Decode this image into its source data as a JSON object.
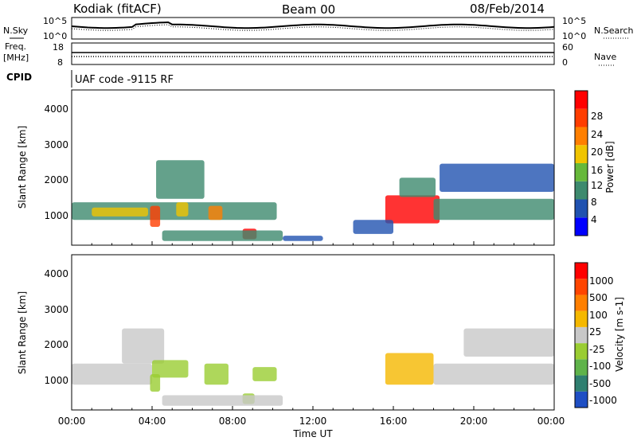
{
  "header": {
    "station": "Kodiak (fitACF)",
    "beam": "Beam 00",
    "date": "08/Feb/2014"
  },
  "status_panel": {
    "left_label": "N.Sky",
    "left_ticks": [
      "10^5",
      "10^0"
    ],
    "right_label": "N.Search",
    "right_ticks": [
      "10^5",
      "10^0"
    ]
  },
  "freq_panel": {
    "label_line1": "Freq.",
    "label_line2": "[MHz]",
    "left_ticks": [
      "18",
      "8"
    ],
    "right_label": "Nave",
    "right_ticks": [
      "60",
      "0"
    ]
  },
  "cpid": {
    "label": "CPID",
    "text": "UAF code -9115 RF"
  },
  "power_panel": {
    "ylabel": "Slant Range [km]",
    "yticks": [
      "4000",
      "3000",
      "2000",
      "1000"
    ],
    "colorbar_label": "Power [dB]",
    "colorbar_ticks": [
      "28",
      "24",
      "20",
      "16",
      "12",
      "8",
      "4"
    ],
    "colors": [
      "#0000ff",
      "#2052b0",
      "#3d8a6e",
      "#66b83a",
      "#f0c400",
      "#ff7f00",
      "#ff3d00",
      "#ff0000"
    ]
  },
  "velocity_panel": {
    "ylabel": "Slant Range [km]",
    "yticks": [
      "4000",
      "3000",
      "2000",
      "1000"
    ],
    "colorbar_label": "Velocity [m s-1]",
    "colorbar_ticks": [
      "1000",
      "500",
      "100",
      "25",
      "-25",
      "-100",
      "-500",
      "-1000"
    ],
    "colors": [
      "#1f4fc4",
      "#2f7f70",
      "#5fb34a",
      "#9acd32",
      "#c8c8c8",
      "#f5b800",
      "#ff7f00",
      "#ff4500",
      "#ff0000"
    ]
  },
  "xaxis": {
    "label": "Time UT",
    "ticks": [
      "00:00",
      "04:00",
      "08:00",
      "12:00",
      "16:00",
      "20:00",
      "00:00"
    ]
  },
  "chart_data": {
    "type": "heatmap",
    "title": "Kodiak (fitACF)  Beam 00  08/Feb/2014",
    "xlabel": "Time UT",
    "ylabel": "Slant Range [km]",
    "xlim_hours": [
      0,
      24
    ],
    "ylim_km": [
      180,
      4600
    ],
    "panels": [
      {
        "name": "Power",
        "unit": "dB",
        "scale": [
          0,
          30
        ],
        "patches": [
          {
            "t0": 0.0,
            "t1": 10.2,
            "r0": 900,
            "r1": 1400,
            "value": 10
          },
          {
            "t0": 1.0,
            "t1": 3.8,
            "r0": 1000,
            "r1": 1250,
            "value": 17
          },
          {
            "t0": 3.9,
            "t1": 4.4,
            "r0": 700,
            "r1": 1300,
            "value": 25
          },
          {
            "t0": 4.2,
            "t1": 6.6,
            "r0": 1500,
            "r1": 2600,
            "value": 9
          },
          {
            "t0": 5.2,
            "t1": 5.8,
            "r0": 1000,
            "r1": 1400,
            "value": 18
          },
          {
            "t0": 6.8,
            "t1": 7.5,
            "r0": 900,
            "r1": 1300,
            "value": 20
          },
          {
            "t0": 8.5,
            "t1": 9.2,
            "r0": 350,
            "r1": 650,
            "value": 27
          },
          {
            "t0": 4.5,
            "t1": 10.5,
            "r0": 300,
            "r1": 600,
            "value": 8
          },
          {
            "t0": 15.6,
            "t1": 18.3,
            "r0": 800,
            "r1": 1600,
            "value": 27
          },
          {
            "t0": 16.3,
            "t1": 18.1,
            "r0": 1550,
            "r1": 2100,
            "value": 10
          },
          {
            "t0": 18.0,
            "t1": 24.0,
            "r0": 900,
            "r1": 1500,
            "value": 10
          },
          {
            "t0": 18.3,
            "t1": 24.0,
            "r0": 1700,
            "r1": 2500,
            "value": 7
          },
          {
            "t0": 14.0,
            "t1": 16.0,
            "r0": 500,
            "r1": 900,
            "value": 6
          },
          {
            "t0": 10.5,
            "t1": 12.5,
            "r0": 300,
            "r1": 450,
            "value": 7
          }
        ]
      },
      {
        "name": "Velocity",
        "unit": "m s-1",
        "scale": [
          -1000,
          1000
        ],
        "patches": [
          {
            "t0": 0.0,
            "t1": 4.0,
            "r0": 900,
            "r1": 1500,
            "value": 0
          },
          {
            "t0": 2.5,
            "t1": 4.6,
            "r0": 1500,
            "r1": 2500,
            "value": 0
          },
          {
            "t0": 4.0,
            "t1": 5.8,
            "r0": 1100,
            "r1": 1600,
            "value": -300
          },
          {
            "t0": 3.9,
            "t1": 4.4,
            "r0": 700,
            "r1": 1200,
            "value": -200
          },
          {
            "t0": 6.6,
            "t1": 7.8,
            "r0": 900,
            "r1": 1500,
            "value": -200
          },
          {
            "t0": 9.0,
            "t1": 10.2,
            "r0": 1000,
            "r1": 1400,
            "value": -150
          },
          {
            "t0": 8.5,
            "t1": 9.1,
            "r0": 350,
            "r1": 650,
            "value": -300
          },
          {
            "t0": 15.6,
            "t1": 18.0,
            "r0": 900,
            "r1": 1800,
            "value": 300
          },
          {
            "t0": 18.0,
            "t1": 24.0,
            "r0": 900,
            "r1": 1500,
            "value": 0
          },
          {
            "t0": 19.5,
            "t1": 24.0,
            "r0": 1700,
            "r1": 2500,
            "value": 0
          },
          {
            "t0": 4.5,
            "t1": 10.5,
            "r0": 300,
            "r1": 600,
            "value": 60
          }
        ]
      }
    ]
  }
}
